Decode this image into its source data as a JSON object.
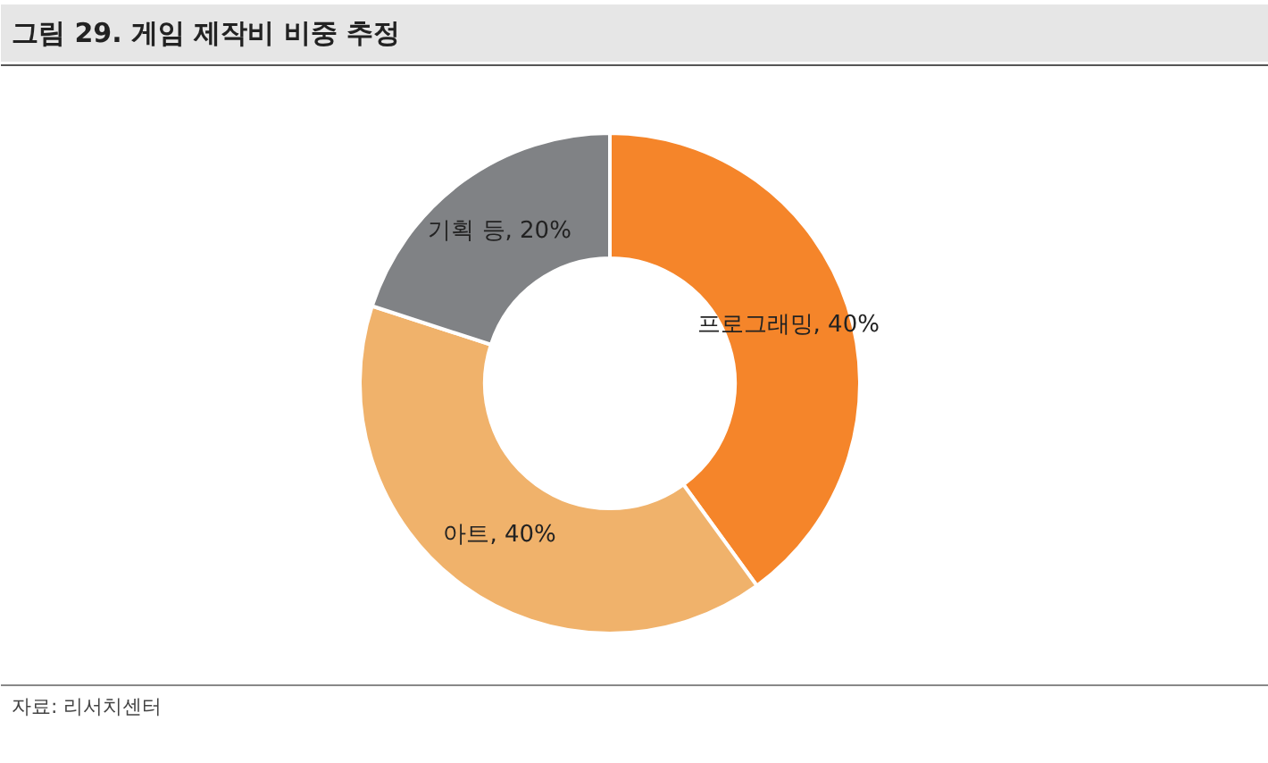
{
  "chart_data": {
    "type": "donut",
    "title": "그림 29. 게임 제작비 비중 추정",
    "categories": [
      "프로그래밍",
      "아트",
      "기획 등"
    ],
    "values": [
      40,
      40,
      20
    ],
    "colors": [
      "#f5852a",
      "#f0b26b",
      "#808285"
    ],
    "value_labels": [
      "40%",
      "40%",
      "20%"
    ],
    "annotations": [
      "자료: 리서치센터"
    ]
  }
}
